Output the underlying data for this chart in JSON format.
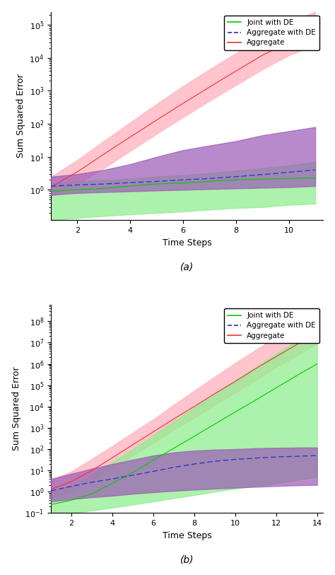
{
  "plot_a": {
    "x": [
      1,
      2,
      3,
      4,
      5,
      6,
      7,
      8,
      9,
      10,
      11
    ],
    "joint_mean": [
      0.9,
      1.0,
      1.1,
      1.3,
      1.5,
      1.6,
      1.8,
      2.0,
      2.1,
      2.2,
      2.3
    ],
    "joint_lo": [
      0.12,
      0.14,
      0.16,
      0.18,
      0.2,
      0.22,
      0.25,
      0.28,
      0.3,
      0.35,
      0.38
    ],
    "joint_hi": [
      1.6,
      1.8,
      2.0,
      2.2,
      2.5,
      2.8,
      3.2,
      3.8,
      4.5,
      5.5,
      7.0
    ],
    "agg_de_mean": [
      1.3,
      1.4,
      1.5,
      1.65,
      1.8,
      2.0,
      2.2,
      2.5,
      2.9,
      3.4,
      4.0
    ],
    "agg_de_lo": [
      0.7,
      0.8,
      0.85,
      0.9,
      0.95,
      1.0,
      1.05,
      1.1,
      1.15,
      1.2,
      1.3
    ],
    "agg_de_hi": [
      2.5,
      3.0,
      4.0,
      6.0,
      10.0,
      16.0,
      22.0,
      30.0,
      45.0,
      60.0,
      80.0
    ],
    "agg_mean": [
      1.2,
      3.5,
      12.0,
      40.0,
      130.0,
      420.0,
      1300.0,
      4000.0,
      12000.0,
      30000.0,
      60000.0
    ],
    "agg_lo": [
      0.6,
      1.5,
      4.5,
      15.0,
      50.0,
      160.0,
      500.0,
      1500.0,
      4500.0,
      12000.0,
      25000.0
    ],
    "agg_hi": [
      2.5,
      8.0,
      30.0,
      110.0,
      400.0,
      1400.0,
      4500.0,
      14000.0,
      45000.0,
      120000.0,
      250000.0
    ],
    "ylim_lo": 0.12,
    "ylim_hi": 250000,
    "xlim": [
      1,
      11.3
    ],
    "xticks": [
      2,
      4,
      6,
      8,
      10
    ],
    "xlabel": "Time Steps",
    "ylabel": "Sum Squared Error",
    "label": "(a)"
  },
  "plot_b": {
    "x": [
      1,
      2,
      3,
      4,
      5,
      6,
      7,
      8,
      9,
      10,
      11,
      12,
      13,
      14
    ],
    "joint_mean": [
      0.25,
      0.4,
      0.8,
      2.5,
      8.0,
      30.0,
      110.0,
      400.0,
      1500.0,
      5500.0,
      20000.0,
      75000.0,
      280000.0,
      1000000.0
    ],
    "joint_lo": [
      0.08,
      0.1,
      0.13,
      0.18,
      0.25,
      0.35,
      0.5,
      0.7,
      1.0,
      1.4,
      1.9,
      2.5,
      3.5,
      5.0
    ],
    "joint_hi": [
      1.0,
      2.0,
      6.0,
      25.0,
      100.0,
      450.0,
      2000.0,
      9000.0,
      40000.0,
      170000.0,
      700000.0,
      3000000.0,
      12000000.0,
      50000000.0
    ],
    "agg_de_mean": [
      1.1,
      1.8,
      2.8,
      4.0,
      6.0,
      9.0,
      14.0,
      20.0,
      27.0,
      33.0,
      38.0,
      43.0,
      46.0,
      50.0
    ],
    "agg_de_lo": [
      0.35,
      0.45,
      0.55,
      0.65,
      0.8,
      0.95,
      1.1,
      1.25,
      1.4,
      1.55,
      1.7,
      1.85,
      2.0,
      2.1
    ],
    "agg_de_hi": [
      4.0,
      7.0,
      12.0,
      20.0,
      32.0,
      50.0,
      70.0,
      85.0,
      95.0,
      100.0,
      110.0,
      115.0,
      118.0,
      120.0
    ],
    "agg_mean": [
      1.3,
      3.0,
      10.0,
      40.0,
      160.0,
      650.0,
      2600.0,
      10000.0,
      40000.0,
      150000.0,
      600000.0,
      2200000.0,
      8000000.0,
      28000000.0
    ],
    "agg_lo": [
      0.5,
      1.1,
      3.5,
      13.0,
      50.0,
      200.0,
      800.0,
      3000.0,
      12000.0,
      45000.0,
      180000.0,
      700000.0,
      2500000.0,
      9000000.0
    ],
    "agg_hi": [
      3.5,
      9.0,
      35.0,
      140.0,
      600.0,
      2500.0,
      12000.0,
      55000.0,
      250000.0,
      1100000.0,
      4500000.0,
      18000000.0,
      75000000.0,
      300000000.0
    ],
    "ylim_lo": 0.1,
    "ylim_hi": 600000000,
    "xlim": [
      1,
      14.3
    ],
    "xticks": [
      2,
      4,
      6,
      8,
      10,
      12,
      14
    ],
    "xlabel": "Time Steps",
    "ylabel": "Sum Squared Error",
    "label": "(b)"
  },
  "colors": {
    "joint_fill": "#90EE90",
    "joint_line": "#00CC00",
    "agg_de_fill": "#9B59B6",
    "agg_de_line": "#2233CC",
    "agg_fill": "#FFB6C1",
    "agg_line": "#EE3333"
  },
  "legend_a": {
    "joint": "Joint with DE",
    "agg_de": "Aggregate with DE",
    "agg": "Aggregate"
  },
  "legend_b": {
    "joint": "Joint with DE",
    "agg_de": "Aggregate with DE",
    "agg": "Aggregate"
  }
}
